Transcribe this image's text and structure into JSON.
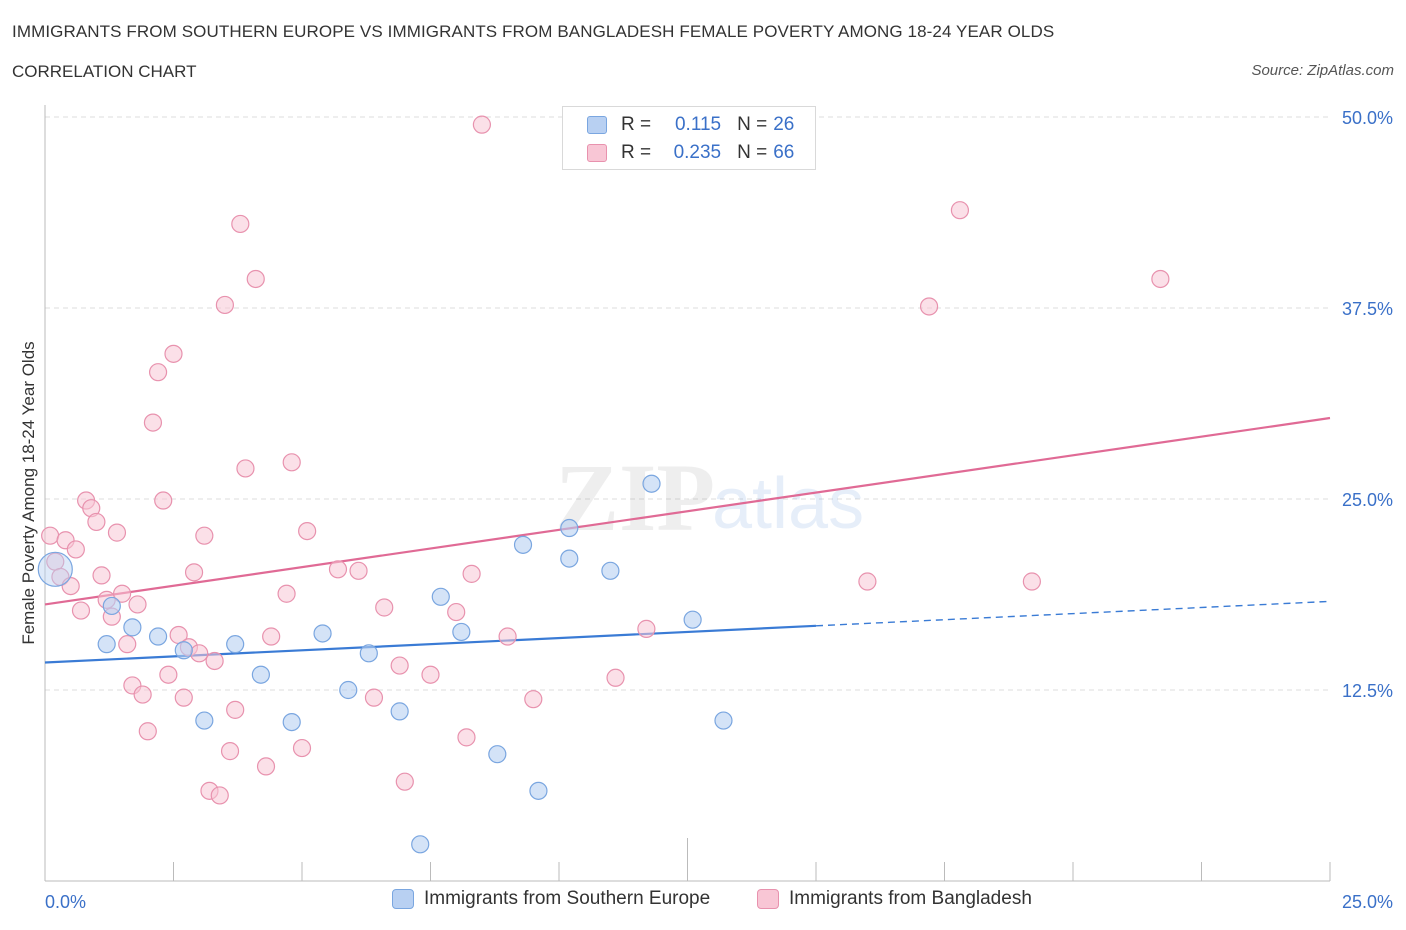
{
  "header": {
    "title": "IMMIGRANTS FROM SOUTHERN EUROPE VS IMMIGRANTS FROM BANGLADESH FEMALE POVERTY AMONG 18-24 YEAR OLDS",
    "subtitle": "CORRELATION CHART",
    "source": "Source: ZipAtlas.com"
  },
  "watermark": {
    "zip": "ZIP",
    "atlas": "atlas"
  },
  "legend": {
    "r_label": "R =",
    "n_label": "N =",
    "rows": [
      {
        "r": "0.115",
        "n": "26",
        "color": "#aac8f0"
      },
      {
        "r": "0.235",
        "n": "66",
        "color": "#f6b8cb"
      }
    ]
  },
  "colors": {
    "blue_fill": "#b8d0f2",
    "blue_stroke": "#7aa6e0",
    "blue_line": "#3a7bd5",
    "pink_fill": "#f8c6d5",
    "pink_stroke": "#e892ae",
    "pink_line": "#e06a95",
    "tick_label": "#3a70c8",
    "grid": "#dddddd"
  },
  "chart_data": {
    "type": "scatter",
    "title": "IMMIGRANTS FROM SOUTHERN EUROPE VS IMMIGRANTS FROM BANGLADESH FEMALE POVERTY AMONG 18-24 YEAR OLDS",
    "xlabel": "",
    "ylabel": "Female Poverty Among 18-24 Year Olds",
    "xlim": [
      0,
      25
    ],
    "ylim": [
      0,
      50
    ],
    "x_tick_labels": [
      "0.0%",
      "25.0%"
    ],
    "y_ticks": [
      12.5,
      25.0,
      37.5,
      50.0
    ],
    "y_tick_labels": [
      "12.5%",
      "25.0%",
      "37.5%",
      "50.0%"
    ],
    "grid": "horizontal dashed",
    "legend_position": "top-center",
    "series": [
      {
        "name": "Immigrants from Southern Europe",
        "r": 0.115,
        "n": 26,
        "trend": {
          "x0": 0,
          "y0": 14.3,
          "x1": 15,
          "y1": 16.7,
          "dashed_to_x": 25,
          "dashed_to_y": 18.3
        },
        "points": [
          [
            0.2,
            20.4,
            "big"
          ],
          [
            1.3,
            18.0
          ],
          [
            1.2,
            15.5
          ],
          [
            1.7,
            16.6
          ],
          [
            2.2,
            16.0
          ],
          [
            2.7,
            15.1
          ],
          [
            3.1,
            10.5
          ],
          [
            3.7,
            15.5
          ],
          [
            4.2,
            13.5
          ],
          [
            4.8,
            10.4
          ],
          [
            5.4,
            16.2
          ],
          [
            5.9,
            12.5
          ],
          [
            6.3,
            14.9
          ],
          [
            6.9,
            11.1
          ],
          [
            7.3,
            2.4
          ],
          [
            7.7,
            18.6
          ],
          [
            8.1,
            16.3
          ],
          [
            8.8,
            8.3
          ],
          [
            9.3,
            22.0
          ],
          [
            9.6,
            5.9
          ],
          [
            10.2,
            21.1
          ],
          [
            10.2,
            23.1
          ],
          [
            11.0,
            20.3
          ],
          [
            11.8,
            26.0
          ],
          [
            12.6,
            17.1
          ],
          [
            13.2,
            10.5
          ]
        ]
      },
      {
        "name": "Immigrants from Bangladesh",
        "r": 0.235,
        "n": 66,
        "trend": {
          "x0": 0,
          "y0": 18.1,
          "x1": 25,
          "y1": 30.3
        },
        "points": [
          [
            0.1,
            22.6
          ],
          [
            0.2,
            20.9
          ],
          [
            0.3,
            19.9
          ],
          [
            0.4,
            22.3
          ],
          [
            0.5,
            19.3
          ],
          [
            0.6,
            21.7
          ],
          [
            0.7,
            17.7
          ],
          [
            0.8,
            24.9
          ],
          [
            0.9,
            24.4
          ],
          [
            1.0,
            23.5
          ],
          [
            1.1,
            20.0
          ],
          [
            1.2,
            18.4
          ],
          [
            1.3,
            17.3
          ],
          [
            1.4,
            22.8
          ],
          [
            1.5,
            18.8
          ],
          [
            1.6,
            15.5
          ],
          [
            1.7,
            12.8
          ],
          [
            1.8,
            18.1
          ],
          [
            1.9,
            12.2
          ],
          [
            2.0,
            9.8
          ],
          [
            2.1,
            30.0
          ],
          [
            2.2,
            33.3
          ],
          [
            2.3,
            24.9
          ],
          [
            2.4,
            13.5
          ],
          [
            2.5,
            34.5
          ],
          [
            2.6,
            16.1
          ],
          [
            2.7,
            12.0
          ],
          [
            2.8,
            15.3
          ],
          [
            2.9,
            20.2
          ],
          [
            3.0,
            14.9
          ],
          [
            3.1,
            22.6
          ],
          [
            3.2,
            5.9
          ],
          [
            3.3,
            14.4
          ],
          [
            3.4,
            5.6
          ],
          [
            3.5,
            37.7
          ],
          [
            3.6,
            8.5
          ],
          [
            3.7,
            11.2
          ],
          [
            3.8,
            43.0
          ],
          [
            3.9,
            27.0
          ],
          [
            4.1,
            39.4
          ],
          [
            4.3,
            7.5
          ],
          [
            4.4,
            16.0
          ],
          [
            4.7,
            18.8
          ],
          [
            4.8,
            27.4
          ],
          [
            5.0,
            8.7
          ],
          [
            5.1,
            22.9
          ],
          [
            5.7,
            20.4
          ],
          [
            6.1,
            20.3
          ],
          [
            6.4,
            12.0
          ],
          [
            6.6,
            17.9
          ],
          [
            6.9,
            14.1
          ],
          [
            7.0,
            6.5
          ],
          [
            7.5,
            13.5
          ],
          [
            8.0,
            17.6
          ],
          [
            8.2,
            9.4
          ],
          [
            8.3,
            20.1
          ],
          [
            8.5,
            49.5
          ],
          [
            9.0,
            16.0
          ],
          [
            9.5,
            11.9
          ],
          [
            11.1,
            13.3
          ],
          [
            11.7,
            16.5
          ],
          [
            16.0,
            19.6
          ],
          [
            17.2,
            37.6
          ],
          [
            17.8,
            43.9
          ],
          [
            19.2,
            19.6
          ],
          [
            21.7,
            39.4
          ]
        ]
      }
    ]
  }
}
